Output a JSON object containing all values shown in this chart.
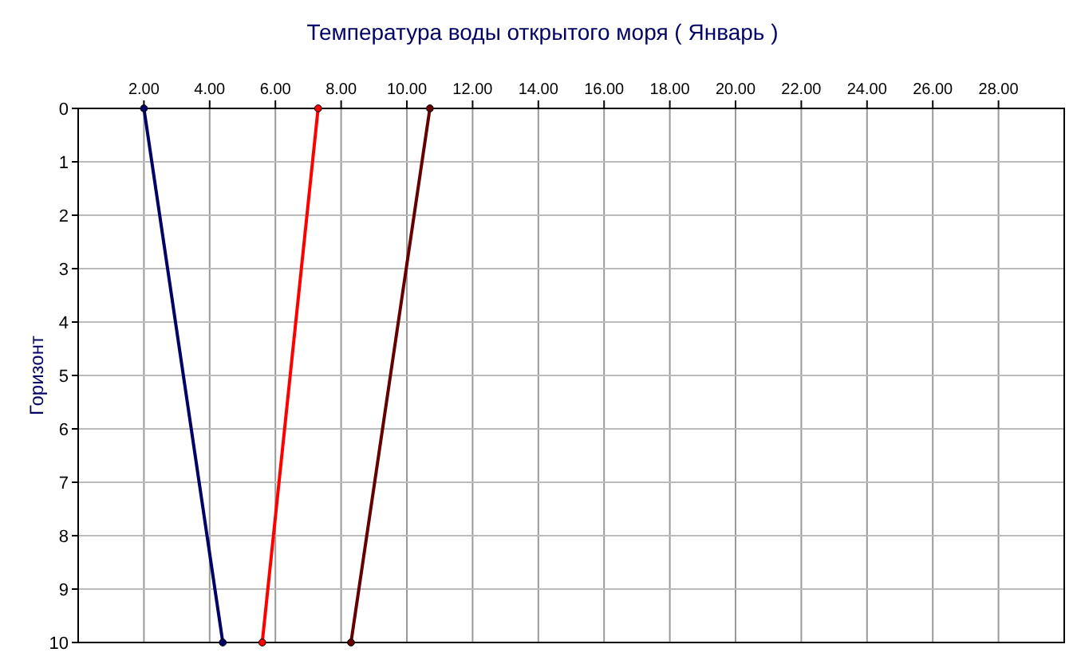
{
  "chart_data": {
    "type": "line",
    "title": "Температура воды открытого моря     ( Январь )",
    "ylabel": "Горизонт",
    "xlim": [
      0,
      30
    ],
    "xticks": [
      {
        "value": 2,
        "label": "2.00"
      },
      {
        "value": 4,
        "label": "4.00"
      },
      {
        "value": 6,
        "label": "6.00"
      },
      {
        "value": 8,
        "label": "8.00"
      },
      {
        "value": 10,
        "label": "10.00"
      },
      {
        "value": 12,
        "label": "12.00"
      },
      {
        "value": 14,
        "label": "14.00"
      },
      {
        "value": 16,
        "label": "16.00"
      },
      {
        "value": 18,
        "label": "18.00"
      },
      {
        "value": 20,
        "label": "20.00"
      },
      {
        "value": 22,
        "label": "22.00"
      },
      {
        "value": 24,
        "label": "24.00"
      },
      {
        "value": 26,
        "label": "26.00"
      },
      {
        "value": 28,
        "label": "28.00"
      }
    ],
    "ylim": [
      10,
      0
    ],
    "yticks": [
      0,
      1,
      2,
      3,
      4,
      5,
      6,
      7,
      8,
      9,
      10
    ],
    "grid": true,
    "marker": "circle",
    "line_style": "solid",
    "series": [
      {
        "color": "#000066",
        "x": [
          2.0,
          4.4
        ],
        "values": [
          0,
          10
        ]
      },
      {
        "color": "#ff0000",
        "x": [
          7.3,
          5.6
        ],
        "values": [
          0,
          10
        ]
      },
      {
        "color": "#660000",
        "x": [
          10.7,
          8.3
        ],
        "values": [
          0,
          10
        ]
      }
    ]
  }
}
